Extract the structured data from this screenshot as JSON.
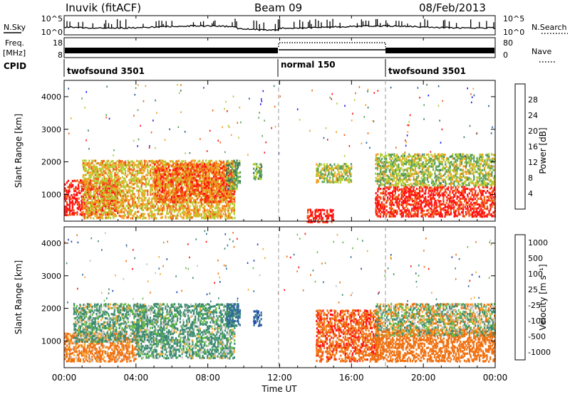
{
  "header": {
    "station": "Inuvik (fitACF)",
    "beam": "Beam 09",
    "date": "08/Feb/2013"
  },
  "panels": {
    "nsky": {
      "left_label": "N.Sky",
      "right_label": "N.Search",
      "left_ticks": [
        "10^5",
        "10^0"
      ],
      "right_ticks": [
        "10^5",
        "10^0"
      ]
    },
    "freq": {
      "left_label_line1": "Freq.",
      "left_label_line2": "[MHz]",
      "right_label": "Nave",
      "left_ticks": [
        "18",
        "8"
      ],
      "right_ticks": [
        "80",
        "0"
      ]
    },
    "cpid": {
      "label": "CPID",
      "segments": [
        {
          "name": "twofsound 3501",
          "start_hour": 0,
          "end_hour": 12
        },
        {
          "name": "normal 150",
          "start_hour": 12,
          "end_hour": 18
        },
        {
          "name": "twofsound 3501",
          "start_hour": 18,
          "end_hour": 24
        }
      ]
    }
  },
  "x_axis": {
    "label": "Time UT",
    "ticks": [
      "00:00",
      "04:00",
      "08:00",
      "12:00",
      "16:00",
      "20:00",
      "00:00"
    ]
  },
  "y_axis": {
    "label": "Slant Range [km]",
    "ticks": [
      "1000",
      "2000",
      "3000",
      "4000"
    ]
  },
  "power_colorbar": {
    "label": "Power [dB]",
    "ticks": [
      "4",
      "8",
      "12",
      "16",
      "20",
      "24",
      "28"
    ],
    "colors": [
      "#1a1aff",
      "#1f5a9e",
      "#3d7a5a",
      "#5aa05a",
      "#b4cc30",
      "#f0a020",
      "#f06010",
      "#ff1010"
    ]
  },
  "velocity_colorbar": {
    "label": "Velocity [m s⁻¹]",
    "ticks": [
      "1000",
      "500",
      "100",
      "25",
      "-25",
      "-100",
      "-500",
      "-1000"
    ],
    "colors": [
      "#2040b0",
      "#2f6a9a",
      "#3a8a70",
      "#66bb44",
      "#c0c0c0",
      "#f4a830",
      "#f07010",
      "#ff1010"
    ]
  },
  "chart_data": [
    {
      "type": "heatmap",
      "title": "Power",
      "xlabel": "Time UT",
      "ylabel": "Slant Range [km]",
      "xlim": [
        0,
        24
      ],
      "ylim": [
        180,
        4500
      ],
      "colorbar": {
        "label": "Power [dB]",
        "range": [
          0,
          30
        ]
      },
      "regions": [
        {
          "t0": 0.0,
          "t1": 3.0,
          "r0": 400,
          "r1": 1500,
          "value": 29
        },
        {
          "t0": 1.0,
          "t1": 9.5,
          "r0": 300,
          "r1": 2100,
          "value": 20
        },
        {
          "t0": 5.0,
          "t1": 9.5,
          "r0": 800,
          "r1": 2000,
          "value": 24
        },
        {
          "t0": 9.0,
          "t1": 9.8,
          "r0": 1200,
          "r1": 2100,
          "value": 12
        },
        {
          "t0": 10.5,
          "t1": 11.0,
          "r0": 1500,
          "r1": 2000,
          "value": 14
        },
        {
          "t0": 13.5,
          "t1": 15.0,
          "r0": 180,
          "r1": 600,
          "value": 29
        },
        {
          "t0": 14.0,
          "t1": 16.0,
          "r0": 1400,
          "r1": 2000,
          "value": 16
        },
        {
          "t0": 17.3,
          "t1": 24.0,
          "r0": 350,
          "r1": 1300,
          "value": 28
        },
        {
          "t0": 17.3,
          "t1": 24.0,
          "r0": 1300,
          "r1": 2300,
          "value": 16
        }
      ]
    },
    {
      "type": "heatmap",
      "title": "Velocity",
      "xlabel": "Time UT",
      "ylabel": "Slant Range [km]",
      "xlim": [
        0,
        24
      ],
      "ylim": [
        180,
        4500
      ],
      "colorbar": {
        "label": "Velocity [m s⁻¹]",
        "range": [
          -1000,
          1000
        ]
      },
      "regions": [
        {
          "t0": 0.0,
          "t1": 4.0,
          "r0": 400,
          "r1": 1300,
          "value": -200
        },
        {
          "t0": 0.5,
          "t1": 4.5,
          "r0": 1000,
          "r1": 2200,
          "value": 120
        },
        {
          "t0": 4.0,
          "t1": 9.5,
          "r0": 500,
          "r1": 2200,
          "value": 150
        },
        {
          "t0": 9.0,
          "t1": 9.8,
          "r0": 1500,
          "r1": 2200,
          "value": 600
        },
        {
          "t0": 10.5,
          "t1": 11.0,
          "r0": 1500,
          "r1": 2000,
          "value": 900
        },
        {
          "t0": 14.0,
          "t1": 17.5,
          "r0": 400,
          "r1": 2000,
          "value": -400
        },
        {
          "t0": 17.3,
          "t1": 24.0,
          "r0": 400,
          "r1": 1400,
          "value": -300
        },
        {
          "t0": 17.3,
          "t1": 24.0,
          "r0": 1200,
          "r1": 2200,
          "value": 20
        }
      ]
    }
  ]
}
